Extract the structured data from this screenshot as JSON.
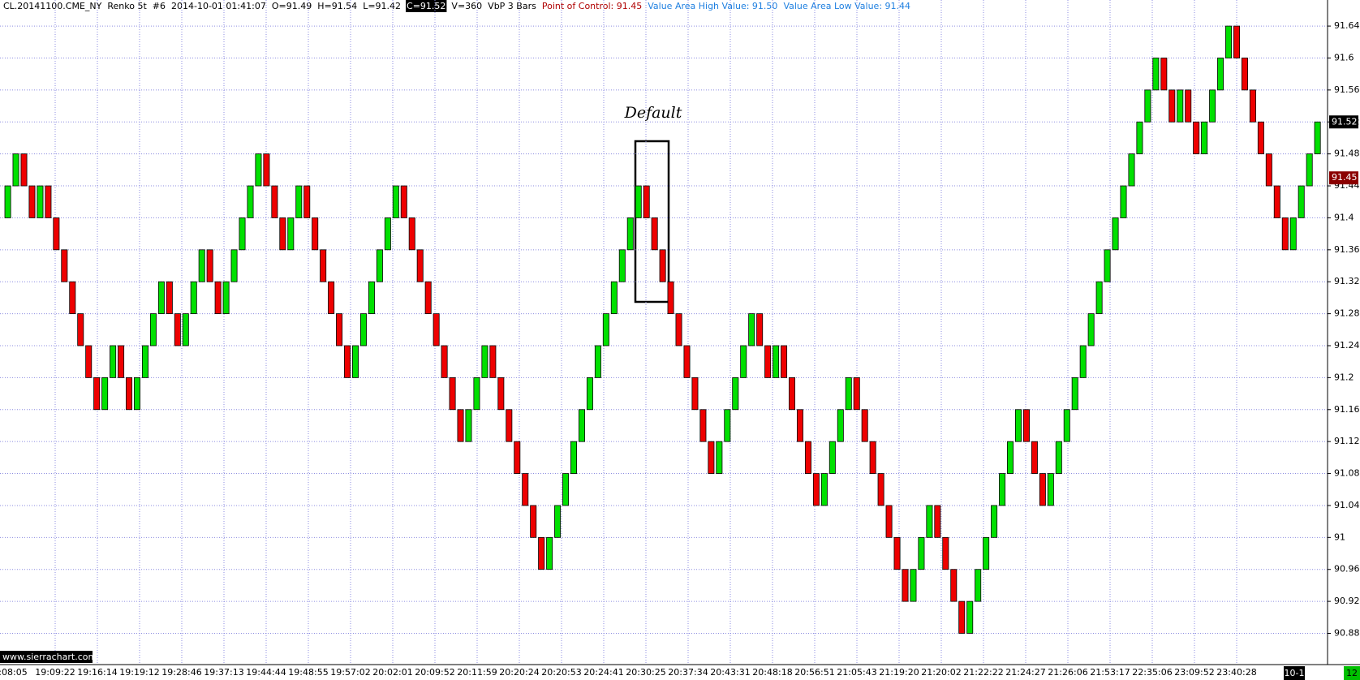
{
  "chart_data": {
    "type": "renko",
    "header": {
      "symbol": "CL.20141100.CME_NY",
      "chart": "Renko 5t",
      "number": "#6",
      "datetime": "2014-10-01 01:41:07",
      "open": "O=91.49",
      "high": "H=91.54",
      "low": "L=91.42",
      "close": "C=91.52",
      "volume": "V=360",
      "study": "VbP 3 Bars",
      "poc": "Point of Control: 91.45",
      "vah": "Value Area High Value: 91.50",
      "val": "Value Area Low Value: 91.44"
    },
    "annotation": "Default",
    "watermark": "www.sierrachart.com",
    "brick_size": 0.04,
    "up_color": "#00e000",
    "down_color": "#ee0000",
    "close": [
      91.44,
      91.48,
      91.44,
      91.4,
      91.44,
      91.4,
      91.36,
      91.32,
      91.28,
      91.24,
      91.2,
      91.16,
      91.2,
      91.24,
      91.2,
      91.16,
      91.2,
      91.24,
      91.28,
      91.32,
      91.28,
      91.24,
      91.28,
      91.32,
      91.36,
      91.32,
      91.28,
      91.32,
      91.36,
      91.4,
      91.44,
      91.48,
      91.44,
      91.4,
      91.36,
      91.4,
      91.44,
      91.4,
      91.36,
      91.32,
      91.28,
      91.24,
      91.2,
      91.24,
      91.28,
      91.32,
      91.36,
      91.4,
      91.44,
      91.4,
      91.36,
      91.32,
      91.28,
      91.24,
      91.2,
      91.16,
      91.12,
      91.16,
      91.2,
      91.24,
      91.2,
      91.16,
      91.12,
      91.08,
      91.04,
      91.0,
      90.96,
      91.0,
      91.04,
      91.08,
      91.12,
      91.16,
      91.2,
      91.24,
      91.28,
      91.32,
      91.36,
      91.4,
      91.44,
      91.4,
      91.36,
      91.32,
      91.28,
      91.24,
      91.2,
      91.16,
      91.12,
      91.08,
      91.12,
      91.16,
      91.2,
      91.24,
      91.28,
      91.24,
      91.2,
      91.24,
      91.2,
      91.16,
      91.12,
      91.08,
      91.04,
      91.08,
      91.12,
      91.16,
      91.2,
      91.16,
      91.12,
      91.08,
      91.04,
      91.0,
      90.96,
      90.92,
      90.96,
      91.0,
      91.04,
      91.0,
      90.96,
      90.92,
      90.88,
      90.92,
      90.96,
      91.0,
      91.04,
      91.08,
      91.12,
      91.16,
      91.12,
      91.08,
      91.04,
      91.08,
      91.12,
      91.16,
      91.2,
      91.24,
      91.28,
      91.32,
      91.36,
      91.4,
      91.44,
      91.48,
      91.52,
      91.56,
      91.6,
      91.56,
      91.52,
      91.56,
      91.52,
      91.48,
      91.52,
      91.56,
      91.6,
      91.64,
      91.6,
      91.56,
      91.52,
      91.48,
      91.44,
      91.4,
      91.36,
      91.4,
      91.44,
      91.48,
      91.52
    ],
    "ylim": [
      90.8409,
      91.6726
    ],
    "yticks": [
      91.64,
      91.6,
      91.56,
      91.52,
      91.48,
      91.44,
      91.4,
      91.36,
      91.32,
      91.28,
      91.24,
      91.2,
      91.16,
      91.12,
      91.08,
      91.04,
      91.0,
      90.96,
      90.92,
      90.88
    ],
    "price_markers": [
      {
        "value": 91.52,
        "label": "91.52",
        "color": "#000000"
      },
      {
        "value": 91.45,
        "label": "91.45",
        "color": "#8b0000"
      }
    ],
    "x_labels": [
      ":08:05",
      "19:09:22",
      "19:16:14",
      "19:19:12",
      "19:28:46",
      "19:37:13",
      "19:44:44",
      "19:48:55",
      "19:57:02",
      "20:02:01",
      "20:09:52",
      "20:11:59",
      "20:20:24",
      "20:20:53",
      "20:24:41",
      "20:30:25",
      "20:37:34",
      "20:43:31",
      "20:48:18",
      "20:56:51",
      "21:05:43",
      "21:19:20",
      "21:20:02",
      "21:22:22",
      "21:24:27",
      "21:26:06",
      "21:53:17",
      "22:35:06",
      "23:09:52",
      "23:40:28"
    ],
    "date_label": "10-1",
    "corner_label": "12",
    "grid": true
  }
}
